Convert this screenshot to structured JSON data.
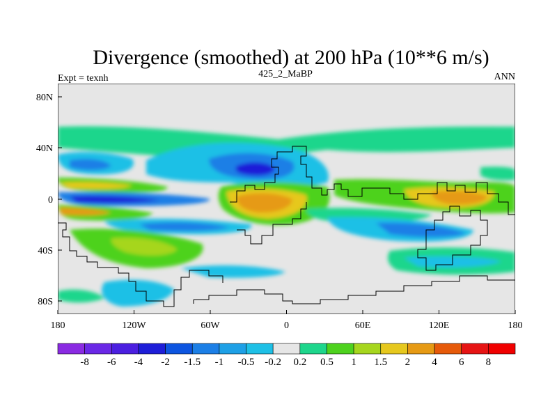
{
  "chart_data": {
    "type": "contour-map",
    "title": "Divergence (smoothed) at 200 hPa (10**6 m/s)",
    "subtitle_left": "Expt = texnh",
    "subtitle_center": "425_2_MaBP",
    "subtitle_right": "ANN",
    "x_ticks": [
      "180",
      "120W",
      "60W",
      "0",
      "60E",
      "120E",
      "180"
    ],
    "x_tick_values": [
      -180,
      -120,
      -60,
      0,
      60,
      120,
      180
    ],
    "y_ticks": [
      "80N",
      "40N",
      "0",
      "40S",
      "80S"
    ],
    "y_tick_values": [
      80,
      40,
      0,
      -40,
      -80
    ],
    "xlim": [
      -180,
      180
    ],
    "ylim": [
      -90,
      90
    ],
    "colorbar": {
      "labels": [
        "-8",
        "-6",
        "-4",
        "-2",
        "-1.5",
        "-1",
        "-0.5",
        "-0.2",
        "0.2",
        "0.5",
        "1",
        "1.5",
        "2",
        "4",
        "6",
        "8"
      ],
      "colors": [
        "#8a2be2",
        "#6a28e6",
        "#4b1fe0",
        "#1e1ed8",
        "#0d55e0",
        "#1c7fe6",
        "#1ea0e6",
        "#1ec0e6",
        "#e6e6e6",
        "#1ed68c",
        "#4ed21e",
        "#a6d61e",
        "#e6c81e",
        "#e69a14",
        "#e65a0a",
        "#e61414",
        "#f00000"
      ]
    },
    "fields": [
      {
        "lon": -150,
        "lat": 10,
        "value": 1.8
      },
      {
        "lon": -150,
        "lat": -10,
        "value": 1.5
      },
      {
        "lon": -140,
        "lat": 0,
        "value": -3.0
      },
      {
        "lon": -20,
        "lat": 0,
        "value": 2.5
      },
      {
        "lon": 140,
        "lat": 0,
        "value": 2.5
      },
      {
        "lon": -30,
        "lat": 28,
        "value": -2.5
      },
      {
        "lon": -110,
        "lat": -35,
        "value": 1.5
      },
      {
        "lon": 110,
        "lat": -15,
        "value": -1.5
      },
      {
        "lon": 0,
        "lat": 55,
        "value": 0.5
      }
    ]
  }
}
